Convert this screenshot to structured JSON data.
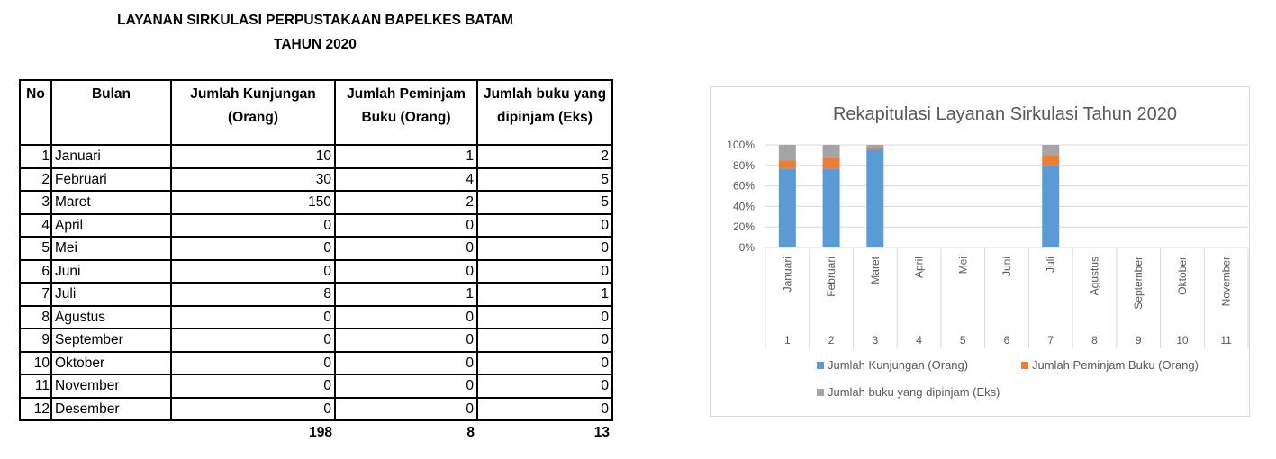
{
  "document": {
    "title_line1": "LAYANAN SIRKULASI PERPUSTAKAAN BAPELKES BATAM",
    "title_line2": "TAHUN 2020"
  },
  "table": {
    "headers": [
      "No",
      "Bulan",
      "Jumlah Kunjungan (Orang)",
      "Jumlah Peminjam Buku (Orang)",
      "Jumlah buku yang dipinjam (Eks)"
    ],
    "rows": [
      {
        "no": "1",
        "bulan": "Januari",
        "kunjungan": "10",
        "peminjam": "1",
        "buku": "2"
      },
      {
        "no": "2",
        "bulan": "Februari",
        "kunjungan": "30",
        "peminjam": "4",
        "buku": "5"
      },
      {
        "no": "3",
        "bulan": "Maret",
        "kunjungan": "150",
        "peminjam": "2",
        "buku": "5"
      },
      {
        "no": "4",
        "bulan": "April",
        "kunjungan": "0",
        "peminjam": "0",
        "buku": "0"
      },
      {
        "no": "5",
        "bulan": "Mei",
        "kunjungan": "0",
        "peminjam": "0",
        "buku": "0"
      },
      {
        "no": "6",
        "bulan": "Juni",
        "kunjungan": "0",
        "peminjam": "0",
        "buku": "0"
      },
      {
        "no": "7",
        "bulan": "Juli",
        "kunjungan": "8",
        "peminjam": "1",
        "buku": "1"
      },
      {
        "no": "8",
        "bulan": "Agustus",
        "kunjungan": "0",
        "peminjam": "0",
        "buku": "0"
      },
      {
        "no": "9",
        "bulan": "September",
        "kunjungan": "0",
        "peminjam": "0",
        "buku": "0"
      },
      {
        "no": "10",
        "bulan": "Oktober",
        "kunjungan": "0",
        "peminjam": "0",
        "buku": "0"
      },
      {
        "no": "11",
        "bulan": "November",
        "kunjungan": "0",
        "peminjam": "0",
        "buku": "0"
      },
      {
        "no": "12",
        "bulan": "Desember",
        "kunjungan": "0",
        "peminjam": "0",
        "buku": "0"
      }
    ],
    "totals": {
      "kunjungan": "198",
      "peminjam": "8",
      "buku": "13"
    }
  },
  "chart_data": {
    "type": "bar",
    "stacking": "percent",
    "title": "Rekapitulasi Layanan Sirkulasi Tahun 2020",
    "categories": [
      "Januari",
      "Februari",
      "Maret",
      "April",
      "Mei",
      "Juni",
      "Juli",
      "Agustus",
      "September",
      "Oktober",
      "November"
    ],
    "category_numbers": [
      "1",
      "2",
      "3",
      "4",
      "5",
      "6",
      "7",
      "8",
      "9",
      "10",
      "11"
    ],
    "series": [
      {
        "name": "Jumlah Kunjungan (Orang)",
        "color": "#5b9bd5",
        "values": [
          10,
          30,
          150,
          0,
          0,
          0,
          8,
          0,
          0,
          0,
          0
        ]
      },
      {
        "name": "Jumlah Peminjam Buku (Orang)",
        "color": "#ed7d31",
        "values": [
          1,
          4,
          2,
          0,
          0,
          0,
          1,
          0,
          0,
          0,
          0
        ]
      },
      {
        "name": "Jumlah buku yang dipinjam (Eks)",
        "color": "#a5a5a5",
        "values": [
          2,
          5,
          5,
          0,
          0,
          0,
          1,
          0,
          0,
          0,
          0
        ]
      }
    ],
    "y_ticks": [
      "0%",
      "20%",
      "40%",
      "60%",
      "80%",
      "100%"
    ],
    "ylim": [
      0,
      100
    ],
    "grid": true,
    "legend": "bottom"
  }
}
